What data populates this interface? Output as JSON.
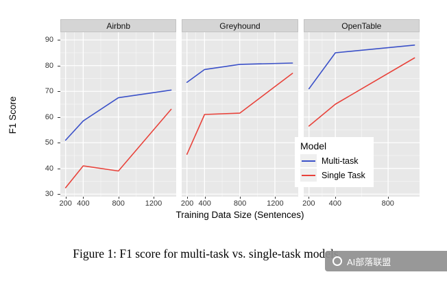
{
  "figure": {
    "caption": "Figure 1: F1 score for multi-task vs. single-task models",
    "watermark": "AI部落联盟"
  },
  "chart_data": {
    "type": "line",
    "title": "",
    "xlabel": "Training Data Size (Sentences)",
    "ylabel": "F1 Score",
    "ydomain": [
      29,
      93
    ],
    "ylim": [
      30,
      90
    ],
    "yticks": [
      30,
      40,
      50,
      60,
      70,
      80,
      90
    ],
    "grid": true,
    "colors": {
      "panel_bg": "#E8E8E8",
      "strip_bg": "#D5D5D5",
      "grid_major": "#FFFFFF",
      "grid_minor": "#FFFFFF",
      "multi_task": "#3A50C8",
      "single_task": "#E8423A"
    },
    "legend": {
      "title": "Model",
      "position": "bottom-right-inside",
      "entries": [
        {
          "label": "Multi-task",
          "color": "#3A50C8"
        },
        {
          "label": "Single Task",
          "color": "#E8423A"
        }
      ]
    },
    "panels": [
      {
        "label": "Airbnb",
        "xdomain": [
          140,
          1460
        ],
        "xticks": [
          200,
          400,
          800,
          1200
        ],
        "series": [
          {
            "name": "Multi-task",
            "color": "#3A50C8",
            "points": [
              [
                200,
                51
              ],
              [
                400,
                58.5
              ],
              [
                800,
                67.5
              ],
              [
                1400,
                70.5
              ]
            ]
          },
          {
            "name": "Single Task",
            "color": "#E8423A",
            "points": [
              [
                200,
                32.5
              ],
              [
                400,
                41
              ],
              [
                800,
                39
              ],
              [
                1400,
                63
              ]
            ]
          }
        ]
      },
      {
        "label": "Greyhound",
        "xdomain": [
          140,
          1460
        ],
        "xticks": [
          200,
          400,
          800,
          1200
        ],
        "series": [
          {
            "name": "Multi-task",
            "color": "#3A50C8",
            "points": [
              [
                200,
                73.5
              ],
              [
                400,
                78.5
              ],
              [
                800,
                80.5
              ],
              [
                1400,
                81
              ]
            ]
          },
          {
            "name": "Single Task",
            "color": "#E8423A",
            "points": [
              [
                200,
                45.5
              ],
              [
                400,
                61
              ],
              [
                800,
                61.5
              ],
              [
                1400,
                77
              ]
            ]
          }
        ]
      },
      {
        "label": "OpenTable",
        "xdomain": [
          160,
          1040
        ],
        "xticks": [
          200,
          400,
          800
        ],
        "series": [
          {
            "name": "Multi-task",
            "color": "#3A50C8",
            "points": [
              [
                200,
                71
              ],
              [
                400,
                85
              ],
              [
                1000,
                88
              ]
            ]
          },
          {
            "name": "Single Task",
            "color": "#E8423A",
            "points": [
              [
                200,
                56.5
              ],
              [
                400,
                65
              ],
              [
                1000,
                83
              ]
            ]
          }
        ]
      }
    ]
  }
}
